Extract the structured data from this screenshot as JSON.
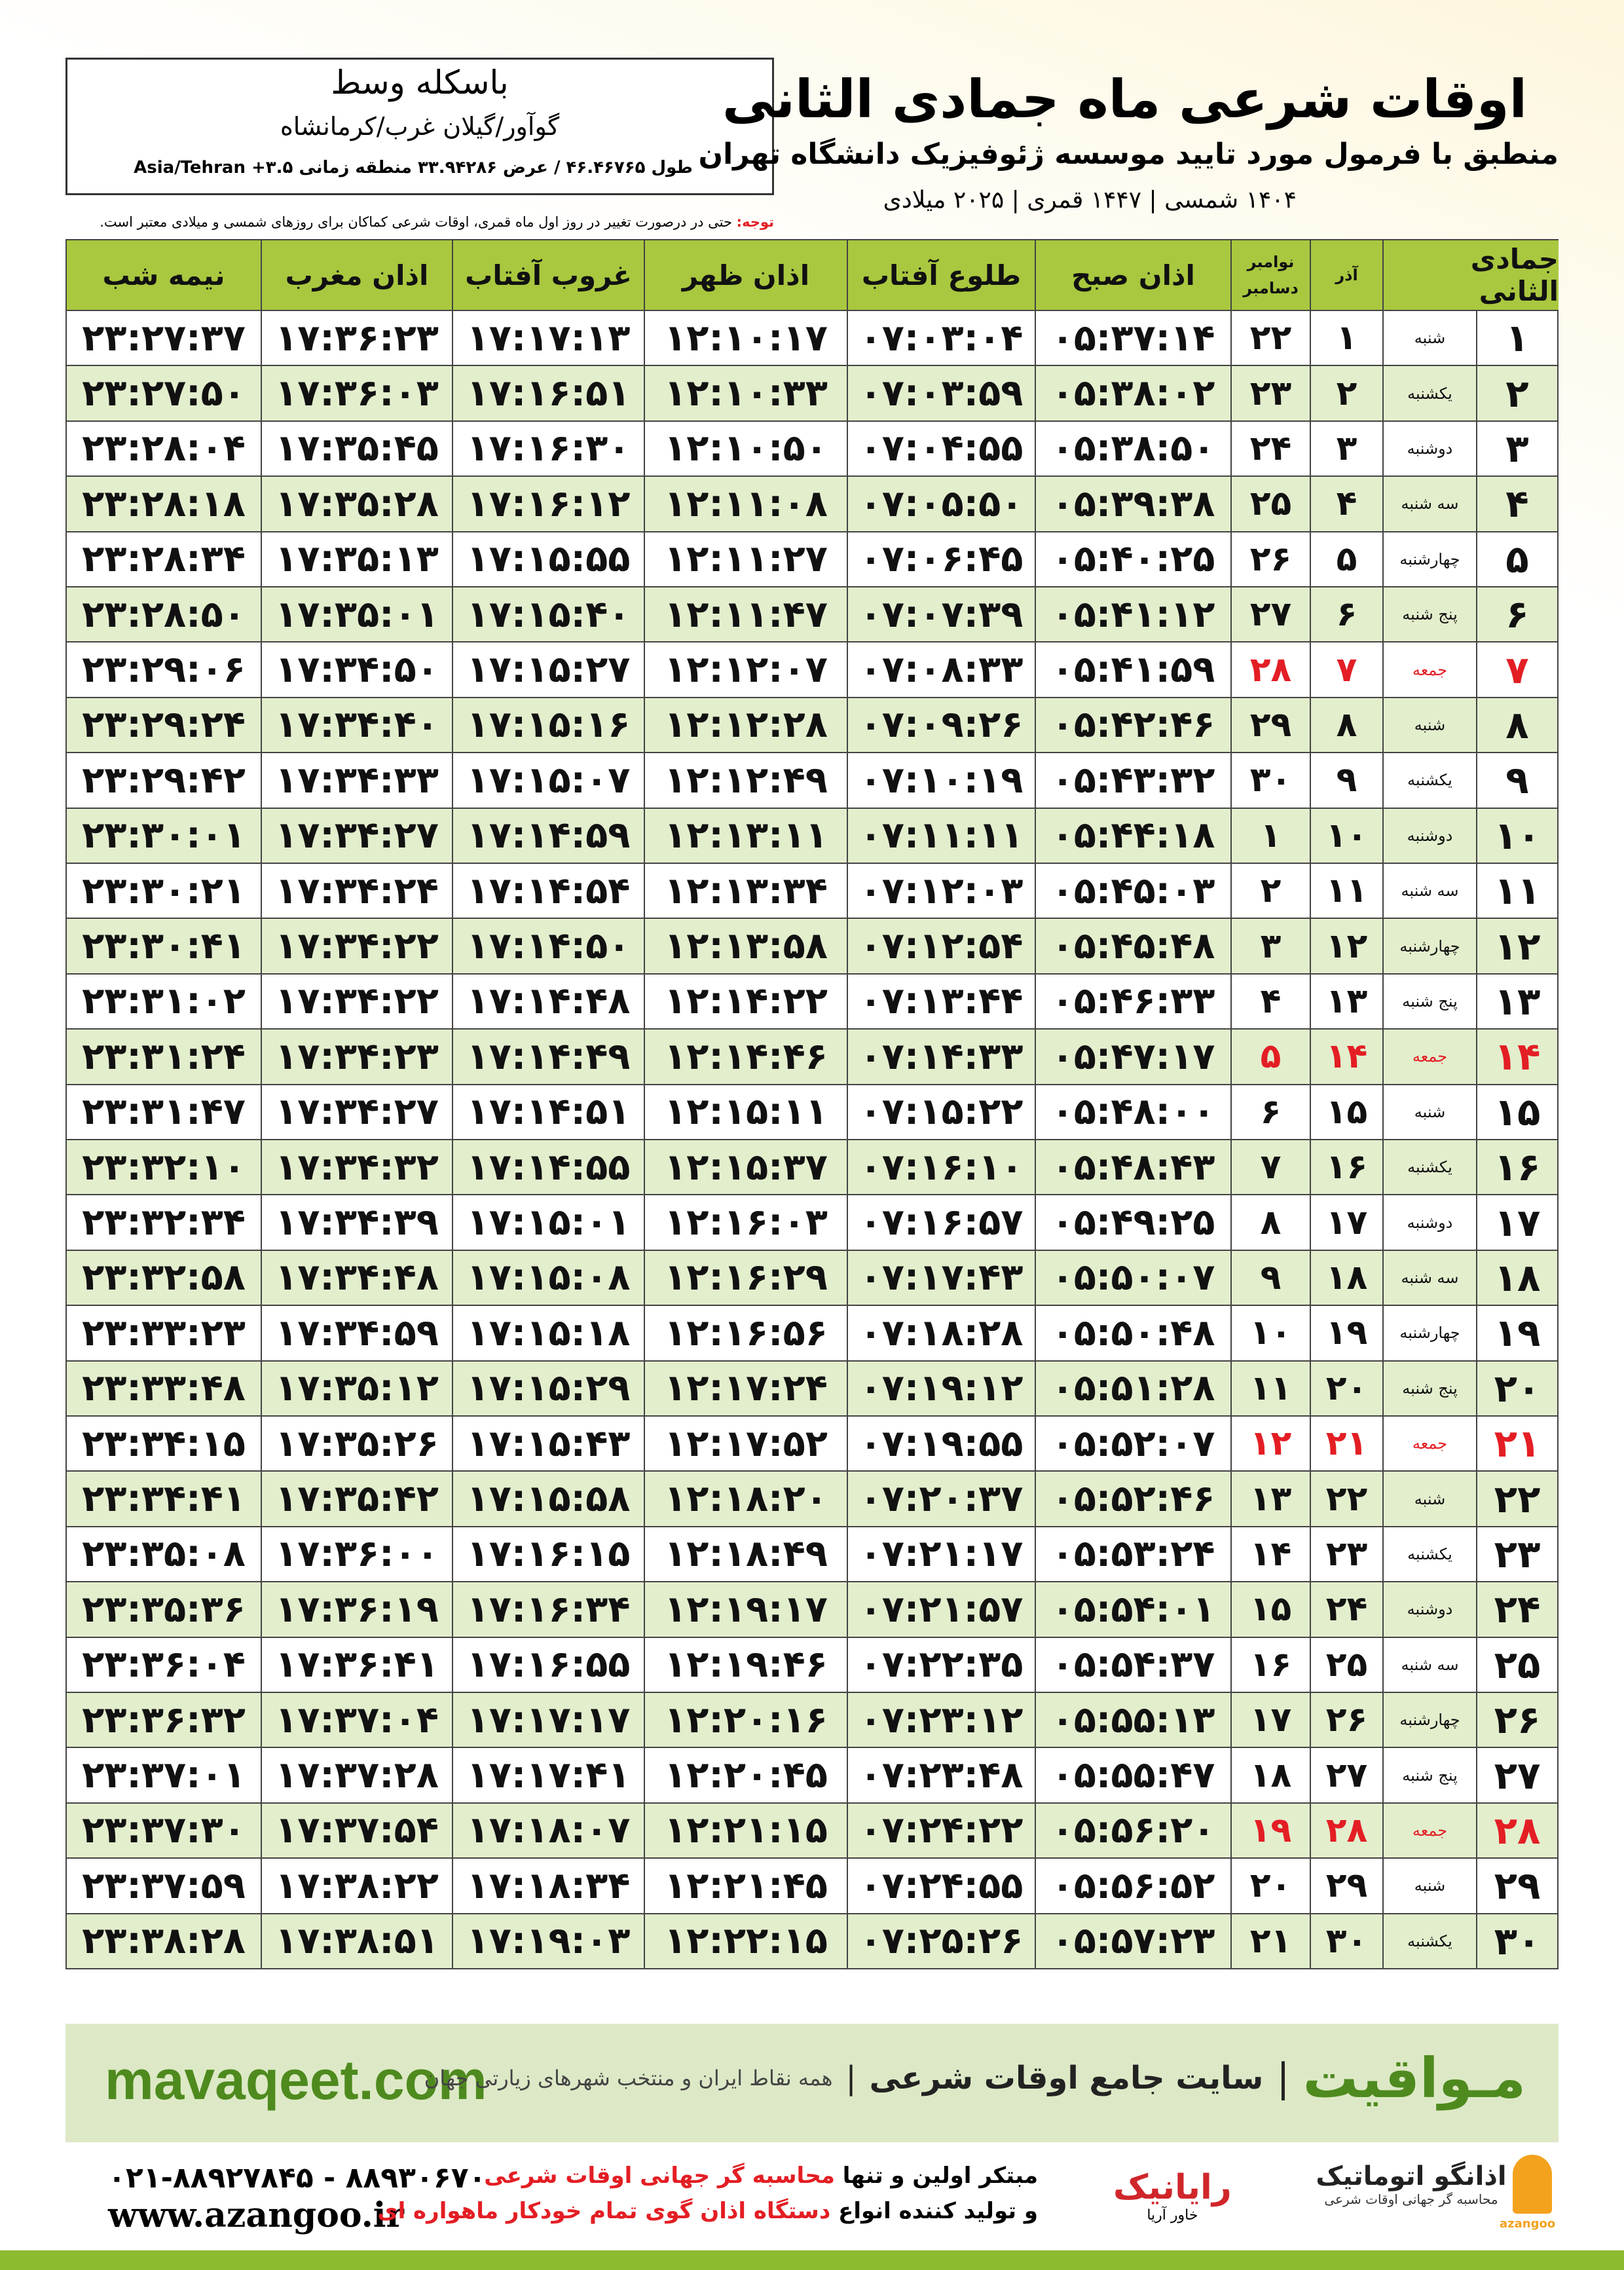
{
  "header": {
    "title": "اوقات شرعی ماه جمادی الثانی",
    "subtitle": "منطبق با فرمول مورد تایید موسسه ژئوفیزیک دانشگاه تهران",
    "dates": "۱۴۰۴ شمسی | ۱۴۴۷ قمری | ۲۰۲۵ میلادی"
  },
  "location": {
    "name": "باسکله وسط",
    "region": "گوآور/گیلان غرب/کرمانشاه",
    "coords": "طول ۴۶.۴۶۷۶۵ / عرض ۳۳.۹۴۲۸۶ منطقه زمانی ۳.۵+ Asia/Tehran"
  },
  "note": {
    "label": "توجه:",
    "text": "حتی در درصورت تغییر در روز اول ماه قمری، اوقات شرعی کماکان برای روزهای شمسی و میلادی معتبر است."
  },
  "table": {
    "headers": [
      "جمادی الثانی",
      "آذر",
      [
        "نوامبر",
        "دسامبر"
      ],
      "اذان صبح",
      "طلوع آفتاب",
      "اذان ظهر",
      "غروب آفتاب",
      "اذان مغرب",
      "نیمه شب"
    ],
    "red_rows": [
      6,
      13,
      20,
      27
    ],
    "red_color": "#e31e24",
    "rows": [
      [
        "۱",
        "شنبه",
        "۱",
        "۲۲",
        "۰۵:۳۷:۱۴",
        "۰۷:۰۳:۰۴",
        "۱۲:۱۰:۱۷",
        "۱۷:۱۷:۱۳",
        "۱۷:۳۶:۲۳",
        "۲۳:۲۷:۳۷"
      ],
      [
        "۲",
        "یکشنبه",
        "۲",
        "۲۳",
        "۰۵:۳۸:۰۲",
        "۰۷:۰۳:۵۹",
        "۱۲:۱۰:۳۳",
        "۱۷:۱۶:۵۱",
        "۱۷:۳۶:۰۳",
        "۲۳:۲۷:۵۰"
      ],
      [
        "۳",
        "دوشنبه",
        "۳",
        "۲۴",
        "۰۵:۳۸:۵۰",
        "۰۷:۰۴:۵۵",
        "۱۲:۱۰:۵۰",
        "۱۷:۱۶:۳۰",
        "۱۷:۳۵:۴۵",
        "۲۳:۲۸:۰۴"
      ],
      [
        "۴",
        "سه شنبه",
        "۴",
        "۲۵",
        "۰۵:۳۹:۳۸",
        "۰۷:۰۵:۵۰",
        "۱۲:۱۱:۰۸",
        "۱۷:۱۶:۱۲",
        "۱۷:۳۵:۲۸",
        "۲۳:۲۸:۱۸"
      ],
      [
        "۵",
        "چهارشنبه",
        "۵",
        "۲۶",
        "۰۵:۴۰:۲۵",
        "۰۷:۰۶:۴۵",
        "۱۲:۱۱:۲۷",
        "۱۷:۱۵:۵۵",
        "۱۷:۳۵:۱۳",
        "۲۳:۲۸:۳۴"
      ],
      [
        "۶",
        "پنج شنبه",
        "۶",
        "۲۷",
        "۰۵:۴۱:۱۲",
        "۰۷:۰۷:۳۹",
        "۱۲:۱۱:۴۷",
        "۱۷:۱۵:۴۰",
        "۱۷:۳۵:۰۱",
        "۲۳:۲۸:۵۰"
      ],
      [
        "۷",
        "جمعه",
        "۷",
        "۲۸",
        "۰۵:۴۱:۵۹",
        "۰۷:۰۸:۳۳",
        "۱۲:۱۲:۰۷",
        "۱۷:۱۵:۲۷",
        "۱۷:۳۴:۵۰",
        "۲۳:۲۹:۰۶"
      ],
      [
        "۸",
        "شنبه",
        "۸",
        "۲۹",
        "۰۵:۴۲:۴۶",
        "۰۷:۰۹:۲۶",
        "۱۲:۱۲:۲۸",
        "۱۷:۱۵:۱۶",
        "۱۷:۳۴:۴۰",
        "۲۳:۲۹:۲۴"
      ],
      [
        "۹",
        "یکشنبه",
        "۹",
        "۳۰",
        "۰۵:۴۳:۳۲",
        "۰۷:۱۰:۱۹",
        "۱۲:۱۲:۴۹",
        "۱۷:۱۵:۰۷",
        "۱۷:۳۴:۳۳",
        "۲۳:۲۹:۴۲"
      ],
      [
        "۱۰",
        "دوشنبه",
        "۱۰",
        "۱",
        "۰۵:۴۴:۱۸",
        "۰۷:۱۱:۱۱",
        "۱۲:۱۳:۱۱",
        "۱۷:۱۴:۵۹",
        "۱۷:۳۴:۲۷",
        "۲۳:۳۰:۰۱"
      ],
      [
        "۱۱",
        "سه شنبه",
        "۱۱",
        "۲",
        "۰۵:۴۵:۰۳",
        "۰۷:۱۲:۰۳",
        "۱۲:۱۳:۳۴",
        "۱۷:۱۴:۵۴",
        "۱۷:۳۴:۲۴",
        "۲۳:۳۰:۲۱"
      ],
      [
        "۱۲",
        "چهارشنبه",
        "۱۲",
        "۳",
        "۰۵:۴۵:۴۸",
        "۰۷:۱۲:۵۴",
        "۱۲:۱۳:۵۸",
        "۱۷:۱۴:۵۰",
        "۱۷:۳۴:۲۲",
        "۲۳:۳۰:۴۱"
      ],
      [
        "۱۳",
        "پنج شنبه",
        "۱۳",
        "۴",
        "۰۵:۴۶:۳۳",
        "۰۷:۱۳:۴۴",
        "۱۲:۱۴:۲۲",
        "۱۷:۱۴:۴۸",
        "۱۷:۳۴:۲۲",
        "۲۳:۳۱:۰۲"
      ],
      [
        "۱۴",
        "جمعه",
        "۱۴",
        "۵",
        "۰۵:۴۷:۱۷",
        "۰۷:۱۴:۳۳",
        "۱۲:۱۴:۴۶",
        "۱۷:۱۴:۴۹",
        "۱۷:۳۴:۲۳",
        "۲۳:۳۱:۲۴"
      ],
      [
        "۱۵",
        "شنبه",
        "۱۵",
        "۶",
        "۰۵:۴۸:۰۰",
        "۰۷:۱۵:۲۲",
        "۱۲:۱۵:۱۱",
        "۱۷:۱۴:۵۱",
        "۱۷:۳۴:۲۷",
        "۲۳:۳۱:۴۷"
      ],
      [
        "۱۶",
        "یکشنبه",
        "۱۶",
        "۷",
        "۰۵:۴۸:۴۳",
        "۰۷:۱۶:۱۰",
        "۱۲:۱۵:۳۷",
        "۱۷:۱۴:۵۵",
        "۱۷:۳۴:۳۲",
        "۲۳:۳۲:۱۰"
      ],
      [
        "۱۷",
        "دوشنبه",
        "۱۷",
        "۸",
        "۰۵:۴۹:۲۵",
        "۰۷:۱۶:۵۷",
        "۱۲:۱۶:۰۳",
        "۱۷:۱۵:۰۱",
        "۱۷:۳۴:۳۹",
        "۲۳:۳۲:۳۴"
      ],
      [
        "۱۸",
        "سه شنبه",
        "۱۸",
        "۹",
        "۰۵:۵۰:۰۷",
        "۰۷:۱۷:۴۳",
        "۱۲:۱۶:۲۹",
        "۱۷:۱۵:۰۸",
        "۱۷:۳۴:۴۸",
        "۲۳:۳۲:۵۸"
      ],
      [
        "۱۹",
        "چهارشنبه",
        "۱۹",
        "۱۰",
        "۰۵:۵۰:۴۸",
        "۰۷:۱۸:۲۸",
        "۱۲:۱۶:۵۶",
        "۱۷:۱۵:۱۸",
        "۱۷:۳۴:۵۹",
        "۲۳:۳۳:۲۳"
      ],
      [
        "۲۰",
        "پنج شنبه",
        "۲۰",
        "۱۱",
        "۰۵:۵۱:۲۸",
        "۰۷:۱۹:۱۲",
        "۱۲:۱۷:۲۴",
        "۱۷:۱۵:۲۹",
        "۱۷:۳۵:۱۲",
        "۲۳:۳۳:۴۸"
      ],
      [
        "۲۱",
        "جمعه",
        "۲۱",
        "۱۲",
        "۰۵:۵۲:۰۷",
        "۰۷:۱۹:۵۵",
        "۱۲:۱۷:۵۲",
        "۱۷:۱۵:۴۳",
        "۱۷:۳۵:۲۶",
        "۲۳:۳۴:۱۵"
      ],
      [
        "۲۲",
        "شنبه",
        "۲۲",
        "۱۳",
        "۰۵:۵۲:۴۶",
        "۰۷:۲۰:۳۷",
        "۱۲:۱۸:۲۰",
        "۱۷:۱۵:۵۸",
        "۱۷:۳۵:۴۲",
        "۲۳:۳۴:۴۱"
      ],
      [
        "۲۳",
        "یکشنبه",
        "۲۳",
        "۱۴",
        "۰۵:۵۳:۲۴",
        "۰۷:۲۱:۱۷",
        "۱۲:۱۸:۴۹",
        "۱۷:۱۶:۱۵",
        "۱۷:۳۶:۰۰",
        "۲۳:۳۵:۰۸"
      ],
      [
        "۲۴",
        "دوشنبه",
        "۲۴",
        "۱۵",
        "۰۵:۵۴:۰۱",
        "۰۷:۲۱:۵۷",
        "۱۲:۱۹:۱۷",
        "۱۷:۱۶:۳۴",
        "۱۷:۳۶:۱۹",
        "۲۳:۳۵:۳۶"
      ],
      [
        "۲۵",
        "سه شنبه",
        "۲۵",
        "۱۶",
        "۰۵:۵۴:۳۷",
        "۰۷:۲۲:۳۵",
        "۱۲:۱۹:۴۶",
        "۱۷:۱۶:۵۵",
        "۱۷:۳۶:۴۱",
        "۲۳:۳۶:۰۴"
      ],
      [
        "۲۶",
        "چهارشنبه",
        "۲۶",
        "۱۷",
        "۰۵:۵۵:۱۳",
        "۰۷:۲۳:۱۲",
        "۱۲:۲۰:۱۶",
        "۱۷:۱۷:۱۷",
        "۱۷:۳۷:۰۴",
        "۲۳:۳۶:۳۲"
      ],
      [
        "۲۷",
        "پنج شنبه",
        "۲۷",
        "۱۸",
        "۰۵:۵۵:۴۷",
        "۰۷:۲۳:۴۸",
        "۱۲:۲۰:۴۵",
        "۱۷:۱۷:۴۱",
        "۱۷:۳۷:۲۸",
        "۲۳:۳۷:۰۱"
      ],
      [
        "۲۸",
        "جمعه",
        "۲۸",
        "۱۹",
        "۰۵:۵۶:۲۰",
        "۰۷:۲۴:۲۲",
        "۱۲:۲۱:۱۵",
        "۱۷:۱۸:۰۷",
        "۱۷:۳۷:۵۴",
        "۲۳:۳۷:۳۰"
      ],
      [
        "۲۹",
        "شنبه",
        "۲۹",
        "۲۰",
        "۰۵:۵۶:۵۲",
        "۰۷:۲۴:۵۵",
        "۱۲:۲۱:۴۵",
        "۱۷:۱۸:۳۴",
        "۱۷:۳۸:۲۲",
        "۲۳:۳۷:۵۹"
      ],
      [
        "۳۰",
        "یکشنبه",
        "۳۰",
        "۲۱",
        "۰۵:۵۷:۲۳",
        "۰۷:۲۵:۲۶",
        "۱۲:۲۲:۱۵",
        "۱۷:۱۹:۰۳",
        "۱۷:۳۸:۵۱",
        "۲۳:۳۸:۲۸"
      ]
    ]
  },
  "banner": {
    "brand": "مـواقیت",
    "slogan": "سایت جامع اوقات شرعی",
    "tagline": "همه نقاط ایران و منتخب شهرهای زیارتی جهان",
    "url": "mavaqeet.com"
  },
  "footer": {
    "phones": "۰۲۱-۸۸۹۲۷۸۴۵ - ۸۸۹۳۰۶۷۰",
    "website": "www.azangoo.ir",
    "line1": [
      "مبتکر اولین و تنها",
      "محاسبه گر جهانی اوقات شرعی"
    ],
    "line2": [
      "و تولید کننده انواع",
      "دستگاه اذان گوی تمام خودکار ماهواره ای"
    ],
    "logo1": "رایانیک",
    "logo1_sub": "خاور آریا",
    "logo2": "اذانگو اتوماتیک",
    "logo2_sub": "محاسبه گر جهانی اوقات شرعی",
    "logo2_mark": "azangoo"
  }
}
